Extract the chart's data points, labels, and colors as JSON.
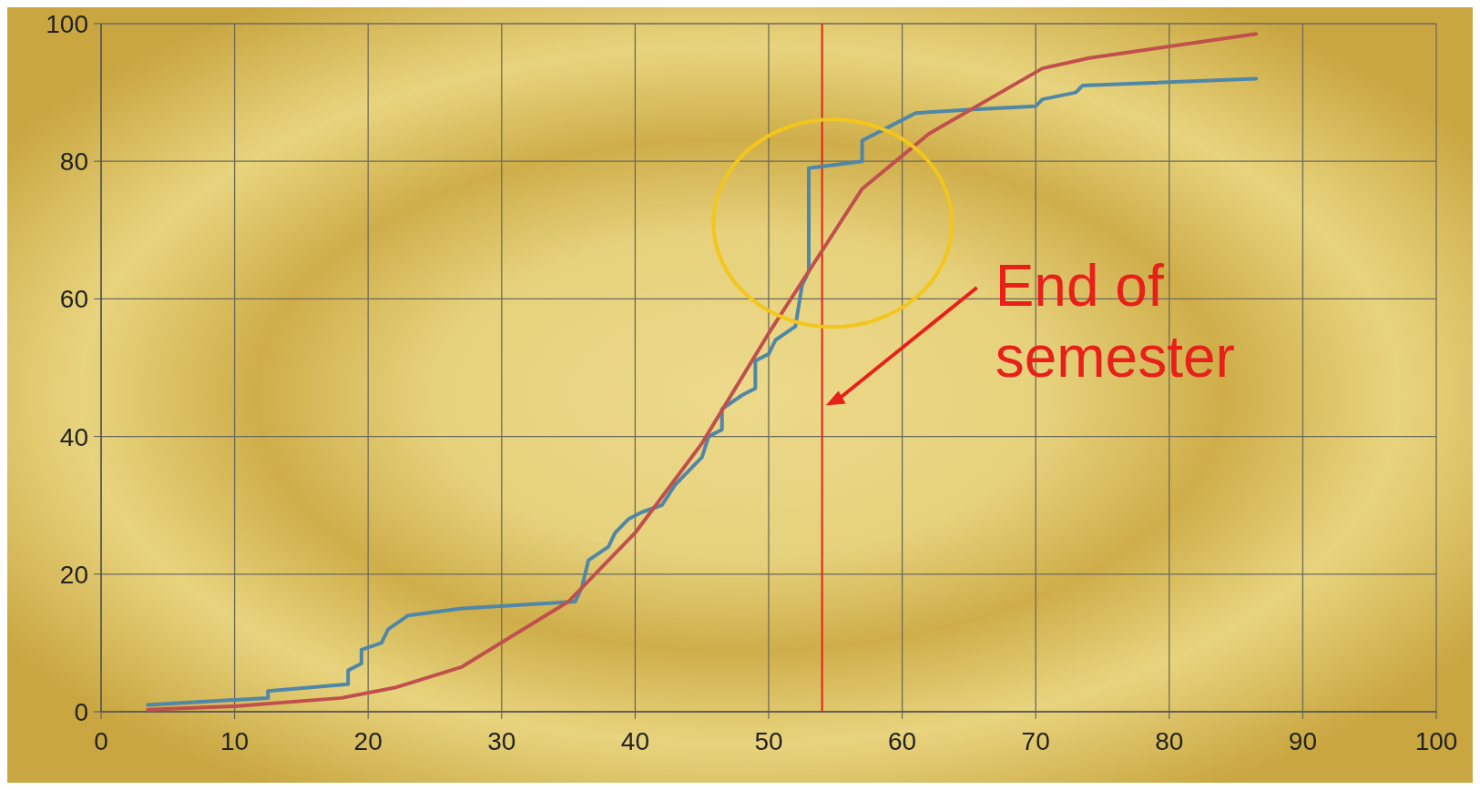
{
  "chart_data": {
    "type": "line",
    "series": [
      {
        "color": "#4f87a8",
        "x": [
          3.5,
          12.5,
          12.5,
          18.5,
          18.5,
          19.5,
          19.5,
          21,
          21.5,
          23,
          27,
          35.5,
          36,
          36.5,
          38,
          38.5,
          39.5,
          40.5,
          42,
          43,
          45,
          45.5,
          46.5,
          46.5,
          48,
          49,
          49,
          50,
          50.5,
          52,
          52.5,
          53,
          53,
          57,
          57,
          59,
          61,
          65,
          70,
          70.5,
          73,
          73.5,
          86.5
        ],
        "values": [
          1,
          2,
          3,
          4,
          6,
          7,
          9,
          10,
          12,
          14,
          15,
          16,
          18,
          22,
          24,
          26,
          28,
          29,
          30,
          33,
          37,
          40,
          41,
          44,
          46,
          47,
          51,
          52,
          54,
          56,
          62,
          64,
          79,
          80,
          83,
          85,
          87,
          87.5,
          88,
          89,
          90,
          91,
          92
        ]
      },
      {
        "color": "#c0504d",
        "x": [
          3.5,
          10,
          18,
          22,
          27,
          35,
          40,
          45,
          50,
          54,
          57,
          62,
          70.5,
          74,
          86.5
        ],
        "values": [
          0.3,
          0.8,
          2,
          3.5,
          6.5,
          16,
          26,
          39,
          55,
          67,
          76,
          84,
          93.5,
          95,
          98.5
        ]
      }
    ],
    "xlim": [
      0,
      100
    ],
    "xticks": [
      0,
      10,
      20,
      30,
      40,
      50,
      60,
      70,
      80,
      90,
      100
    ],
    "ylim": [
      0,
      100
    ],
    "yticks": [
      0,
      20,
      40,
      60,
      80,
      100
    ],
    "grid": true,
    "marker": "none",
    "line_style": "solid",
    "ref_lines": [
      {
        "axis": "x",
        "value": 54,
        "label": "End of semester",
        "color": "#e8201a"
      }
    ]
  }
}
